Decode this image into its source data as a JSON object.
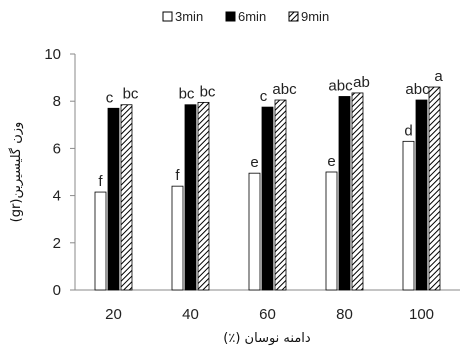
{
  "chart_data": {
    "type": "bar",
    "categories": [
      "20",
      "40",
      "60",
      "80",
      "100"
    ],
    "series": [
      {
        "name": "3min",
        "values": [
          4.15,
          4.4,
          4.95,
          5.0,
          6.3
        ],
        "labels": [
          "f",
          "f",
          "e",
          "e",
          "d"
        ],
        "color": "#ffffff",
        "pattern": "none"
      },
      {
        "name": "6min",
        "values": [
          7.7,
          7.85,
          7.75,
          8.2,
          8.05
        ],
        "labels": [
          "c",
          "bc",
          "c",
          "abc",
          "abc"
        ],
        "color": "#000000",
        "pattern": "solid"
      },
      {
        "name": "9min",
        "values": [
          7.85,
          7.95,
          8.05,
          8.35,
          8.6
        ],
        "labels": [
          "bc",
          "bc",
          "abc",
          "ab",
          "a"
        ],
        "color": "#ffffff",
        "pattern": "diagonal-hatch"
      }
    ],
    "xlabel": "دامنه نوسان (٪)",
    "ylabel": "وزن گلیسیرین(gr)",
    "ylim": [
      0,
      10
    ],
    "yticks": [
      0,
      2,
      4,
      6,
      8,
      10
    ],
    "grid": false,
    "legend_position": "top-center"
  }
}
